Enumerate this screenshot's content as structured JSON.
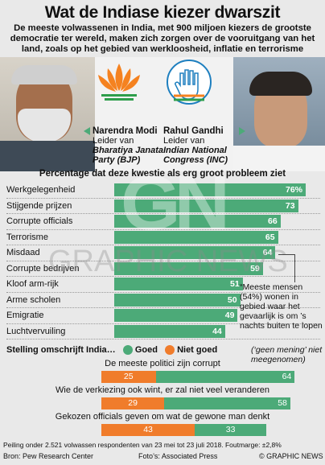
{
  "title": "Wat de Indiase kiezer dwarszit",
  "subtitle": "De meeste volwassenen in India, met 900 miljoen kiezers de grootste democratie ter wereld, maken zich zorgen over de vooruitgang van het land, zoals op het gebied van werkloosheid, inflatie en terrorisme",
  "leaders": [
    {
      "name": "Narendra Modi",
      "role": "Leider van",
      "party": "Bharatiya Janata Party (BJP)"
    },
    {
      "name": "Rahul Gandhi",
      "role": "Leider van",
      "party": "Indian National Congress (INC)"
    }
  ],
  "colors": {
    "bar": "#4caa78",
    "goed": "#4caa78",
    "niet_goed": "#f07c2b",
    "bjp_orange": "#f58220",
    "inc_blue": "#1e7fbf"
  },
  "chart_data": [
    {
      "type": "bar",
      "title": "Percentage dat deze kwestie als erg groot probleem ziet",
      "categories": [
        "Werkgelegenheid",
        "Stijgende prijzen",
        "Corrupte officials",
        "Terrorisme",
        "Misdaad",
        "Corrupte bedrijven",
        "Kloof arm-rijk",
        "Arme scholen",
        "Emigratie",
        "Luchtvervuiling"
      ],
      "values": [
        76,
        73,
        66,
        65,
        64,
        59,
        51,
        50,
        49,
        44
      ],
      "value_labels": [
        "76%",
        "73",
        "66",
        "65",
        "64",
        "59",
        "51",
        "50",
        "49",
        "44"
      ],
      "xlim": [
        0,
        76
      ]
    },
    {
      "type": "bar",
      "title": "Stelling omschrijft India…",
      "stacked": true,
      "series": [
        {
          "name": "Goed",
          "values": [
            64,
            58,
            33
          ]
        },
        {
          "name": "Niet goed",
          "values": [
            25,
            29,
            43
          ]
        }
      ],
      "categories": [
        "De meeste politici zijn corrupt",
        "Wie de verkiezing ook wint, er zal niet veel veranderen",
        "Gekozen officials geven om wat de gewone man denkt"
      ]
    }
  ],
  "annotation": "“Meeste mensen (54%) wonen in gebied waar het gevaarlijk is om ’s nachts buiten te lopen",
  "legend": {
    "goed": "Goed",
    "niet_goed": "Niet goed",
    "no_opinion": "(‘geen mening’ niet meegenomen)"
  },
  "watermark": {
    "logo": "GN",
    "text": "GRAPHIC NEWS"
  },
  "footnote": "Peiling onder 2.521 volwassen respondenten van 23 mei tot 23 juli 2018. Foutmarge: ±2,8%",
  "source": "Bron: Pew Research Center",
  "photos": "Foto’s: Associated Press",
  "copyright": "© GRAPHIC NEWS"
}
